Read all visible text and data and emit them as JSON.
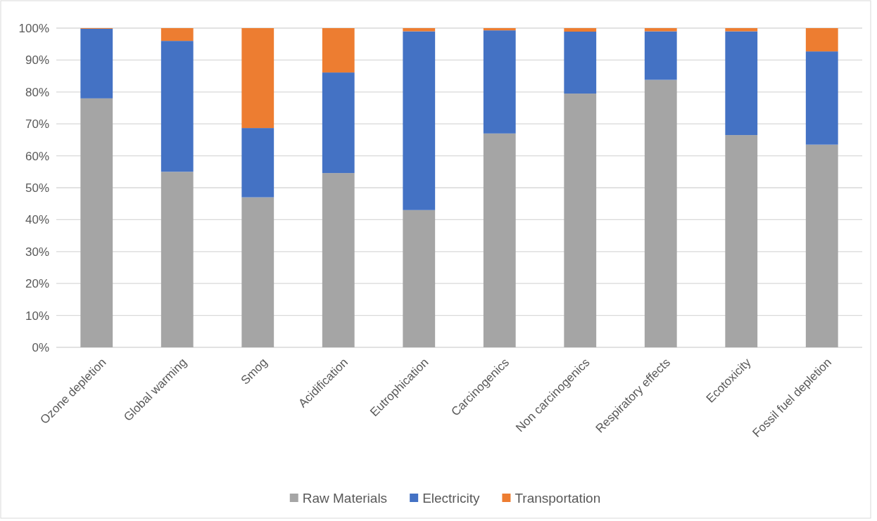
{
  "chart_data": {
    "type": "bar",
    "stacked": true,
    "categories": [
      "Ozone depletion",
      "Global warming",
      "Smog",
      "Acidification",
      "Eutrophication",
      "Carcinogenics",
      "Non carcinogenics",
      "Respiratory effects",
      "Ecotoxicity",
      "Fossil fuel depletion"
    ],
    "series": [
      {
        "name": "Raw Materials",
        "color": "#a5a5a5",
        "values": [
          78,
          55,
          47,
          54.6,
          43,
          67,
          79.5,
          83.8,
          66.5,
          63.5
        ]
      },
      {
        "name": "Electricity",
        "color": "#4472c4",
        "values": [
          21.8,
          41,
          21.7,
          31.5,
          56,
          32.3,
          19.4,
          15.2,
          32.5,
          29.2
        ]
      },
      {
        "name": "Transportation",
        "color": "#ed7d31",
        "values": [
          0.2,
          4,
          31.3,
          13.9,
          1,
          0.7,
          1.1,
          1,
          1,
          7.3
        ]
      }
    ],
    "ylim": [
      0,
      100
    ],
    "yticks": [
      {
        "value": 0,
        "label": "0%"
      },
      {
        "value": 10,
        "label": "10%"
      },
      {
        "value": 20,
        "label": "20%"
      },
      {
        "value": 30,
        "label": "30%"
      },
      {
        "value": 40,
        "label": "40%"
      },
      {
        "value": 50,
        "label": "50%"
      },
      {
        "value": 60,
        "label": "60%"
      },
      {
        "value": 70,
        "label": "70%"
      },
      {
        "value": 80,
        "label": "80%"
      },
      {
        "value": 90,
        "label": "90%"
      },
      {
        "value": 100,
        "label": "100%"
      }
    ],
    "grid": "y",
    "legend": "bottom"
  }
}
